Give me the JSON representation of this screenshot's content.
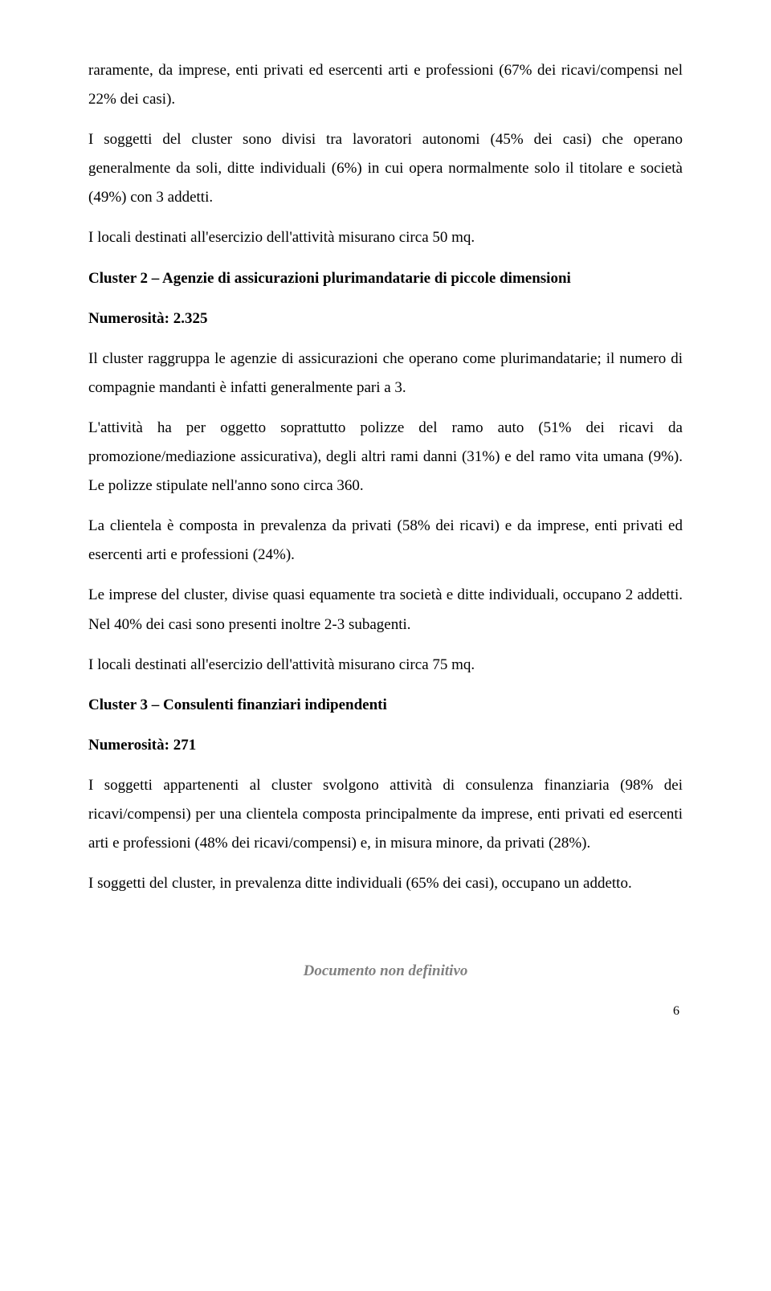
{
  "p1": "raramente, da imprese, enti privati ed esercenti arti e professioni (67% dei ricavi/compensi nel 22% dei casi).",
  "p2": "I soggetti del cluster sono divisi tra lavoratori autonomi (45% dei casi) che operano generalmente da soli, ditte individuali (6%) in cui opera normalmente solo il titolare e società (49%) con 3 addetti.",
  "p3": "I locali destinati all'esercizio dell'attività misurano circa 50 mq.",
  "h1": "Cluster 2 – Agenzie di assicurazioni plurimandatarie di piccole dimensioni",
  "h2": "Numerosità: 2.325",
  "p4": "Il cluster raggruppa le agenzie di assicurazioni che operano come plurimandatarie; il numero di compagnie mandanti è infatti generalmente pari a 3.",
  "p5": "L'attività ha per oggetto soprattutto polizze del ramo auto (51% dei ricavi da promozione/mediazione assicurativa), degli altri rami danni (31%) e del ramo vita umana (9%). Le polizze stipulate nell'anno sono circa 360.",
  "p6": "La clientela è composta in prevalenza da privati (58% dei ricavi) e da imprese, enti privati ed esercenti arti e professioni (24%).",
  "p7": "Le imprese del cluster, divise quasi equamente tra società e ditte individuali, occupano 2 addetti. Nel 40% dei casi sono presenti inoltre 2-3 subagenti.",
  "p8": "I locali destinati all'esercizio dell'attività misurano circa 75 mq.",
  "h3": "Cluster 3 – Consulenti finanziari indipendenti",
  "h4": "Numerosità: 271",
  "p9": "I soggetti appartenenti al cluster svolgono attività di consulenza finanziaria (98% dei ricavi/compensi) per una clientela composta principalmente da imprese, enti privati ed esercenti arti e professioni (48% dei ricavi/compensi) e, in misura minore, da privati (28%).",
  "p10": "I soggetti del cluster, in prevalenza ditte individuali (65% dei casi), occupano un addetto.",
  "footer": "Documento non definitivo",
  "page": "6"
}
